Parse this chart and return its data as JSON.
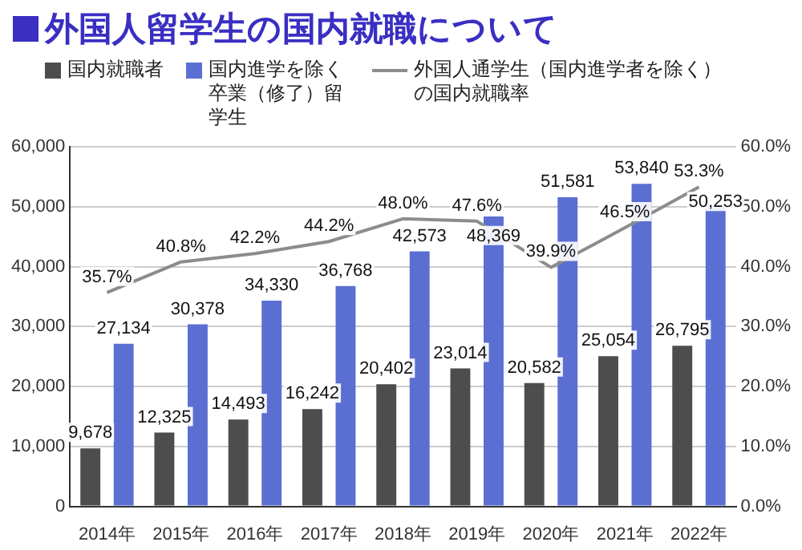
{
  "chart_data": {
    "type": "bar",
    "title": "外国人留学生の国内就職について",
    "categories": [
      "2014年",
      "2015年",
      "2016年",
      "2017年",
      "2018年",
      "2019年",
      "2020年",
      "2021年",
      "2022年"
    ],
    "series": [
      {
        "name": "国内就職者",
        "color": "#4d4d4d",
        "values": [
          9678,
          12325,
          14493,
          16242,
          20402,
          23014,
          20582,
          25054,
          26795
        ]
      },
      {
        "name": "国内進学を除く卒業（修了）留学生",
        "color": "#5b6fd3",
        "values": [
          27134,
          30378,
          34330,
          36768,
          42573,
          48369,
          51581,
          53840,
          50253
        ]
      },
      {
        "name": "外国人通学生（国内進学者を除く）の国内就職率",
        "type": "line",
        "axis": "y2",
        "color": "#8c8c8c",
        "marker": "none",
        "values": [
          35.7,
          40.8,
          42.2,
          44.2,
          48.0,
          47.6,
          39.9,
          46.5,
          53.3
        ]
      }
    ],
    "ylim": [
      0,
      60000
    ],
    "yticks": [
      {
        "value": 0,
        "label": "0"
      },
      {
        "value": 10000,
        "label": "10,000"
      },
      {
        "value": 20000,
        "label": "20,000"
      },
      {
        "value": 30000,
        "label": "30,000"
      },
      {
        "value": 40000,
        "label": "40,000"
      },
      {
        "value": 50000,
        "label": "50,000"
      },
      {
        "value": 60000,
        "label": "60,000"
      }
    ],
    "y2lim": [
      0,
      60
    ],
    "y2ticks": [
      {
        "value": 0,
        "label": "0.0%"
      },
      {
        "value": 10,
        "label": "10.0%"
      },
      {
        "value": 20,
        "label": "20.0%"
      },
      {
        "value": 30,
        "label": "30.0%"
      },
      {
        "value": 40,
        "label": "40.0%"
      },
      {
        "value": 50,
        "label": "50.0%"
      },
      {
        "value": 60,
        "label": "60.0%"
      }
    ],
    "value_labels": [
      [
        "9,678",
        "12,325",
        "14,493",
        "16,242",
        "20,402",
        "23,014",
        "20,582",
        "25,054",
        "26,795"
      ],
      [
        "27,134",
        "30,378",
        "34,330",
        "36,768",
        "42,573",
        "48,369",
        "51,581",
        "53,840",
        "50,253"
      ],
      [
        "35.7%",
        "40.8%",
        "42.2%",
        "44.2%",
        "48.0%",
        "47.6%",
        "39.9%",
        "46.5%",
        "53.3%"
      ]
    ],
    "grid": "y",
    "legend": "top left"
  }
}
